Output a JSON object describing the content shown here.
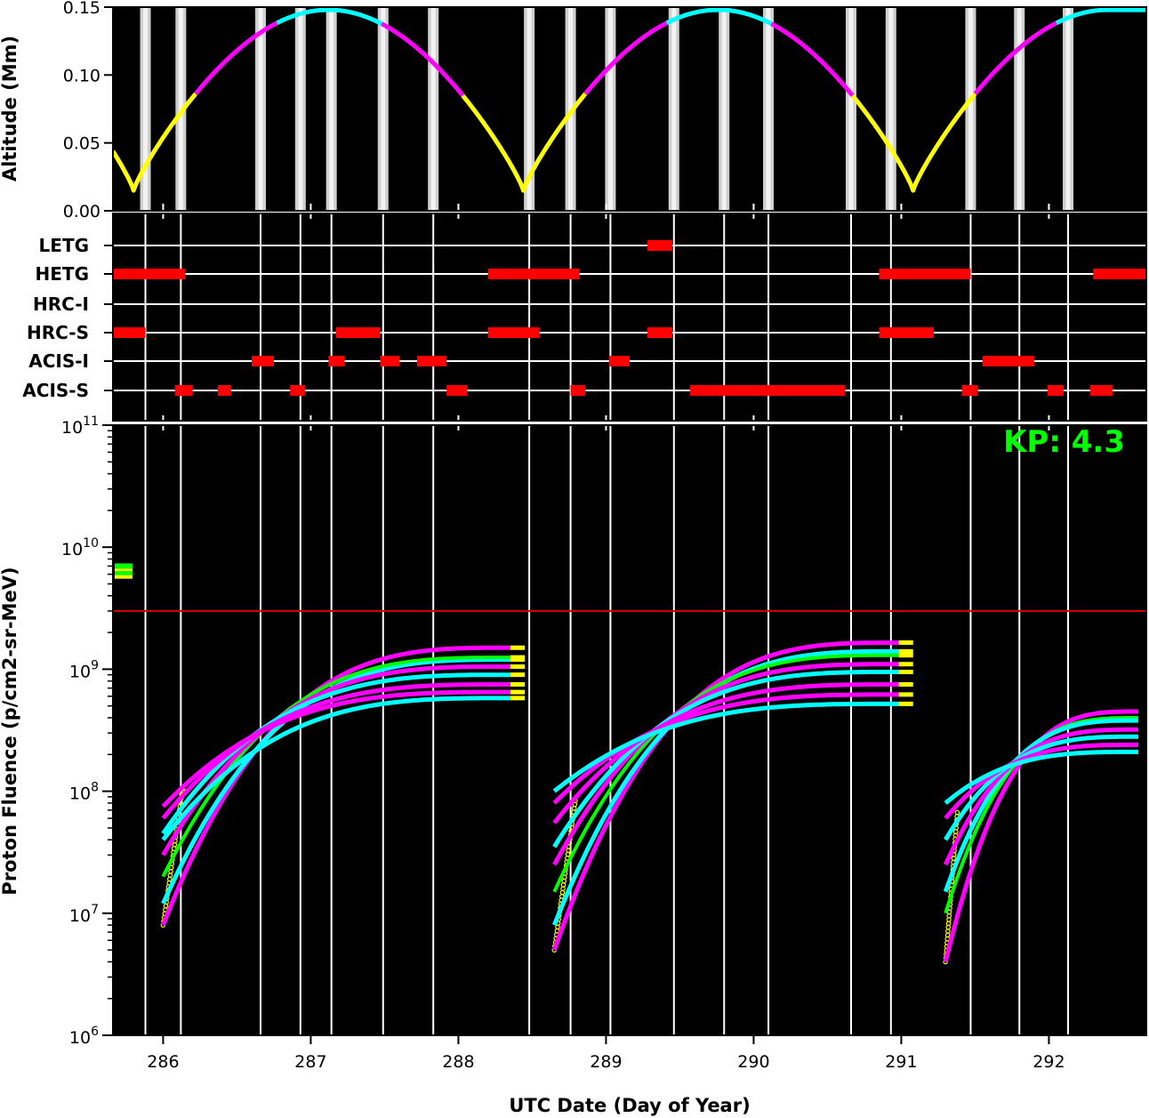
{
  "chart_data": [
    {
      "type": "line",
      "panel": "altitude",
      "ylabel": "Altitude (Mm)",
      "xlim": [
        285.66,
        292.66
      ],
      "ylim": [
        0.0,
        0.15
      ],
      "yticks": [
        "0.00",
        "0.05",
        "0.10",
        "0.15"
      ],
      "ytick_values": [
        0.0,
        0.05,
        0.1,
        0.15
      ],
      "perigee_days": [
        285.8,
        288.44,
        291.08
      ],
      "apogee_altitude": 0.148,
      "perigee_altitude": 0.015,
      "segment_colors": {
        "low": "#ffff00",
        "mid": "#ff00ff",
        "high": "#00ffff"
      },
      "radiation_zone_days": [
        285.88,
        286.12,
        286.66,
        286.93,
        287.14,
        287.49,
        287.83,
        288.48,
        288.76,
        289.03,
        289.46,
        289.8,
        290.1,
        290.66,
        290.93,
        291.47,
        291.8,
        292.13
      ]
    },
    {
      "type": "gantt",
      "panel": "instruments",
      "instruments": [
        "LETG",
        "HETG",
        "HRC-I",
        "HRC-S",
        "ACIS-I",
        "ACIS-S"
      ],
      "bar_color": "#ff0000",
      "intervals": {
        "LETG": [
          [
            289.28,
            289.45
          ]
        ],
        "HETG": [
          [
            285.66,
            286.15
          ],
          [
            288.2,
            288.82
          ],
          [
            290.85,
            291.47
          ],
          [
            292.3,
            292.66
          ]
        ],
        "HRC-I": [],
        "HRC-S": [
          [
            285.66,
            285.88
          ],
          [
            287.17,
            287.47
          ],
          [
            288.2,
            288.55
          ],
          [
            289.28,
            289.45
          ],
          [
            290.85,
            291.22
          ]
        ],
        "ACIS-I": [
          [
            286.6,
            286.75
          ],
          [
            287.12,
            287.23
          ],
          [
            287.47,
            287.6
          ],
          [
            287.72,
            287.92
          ],
          [
            289.02,
            289.16
          ],
          [
            291.55,
            291.9
          ]
        ],
        "ACIS-S": [
          [
            286.08,
            286.2
          ],
          [
            286.37,
            286.46
          ],
          [
            286.86,
            286.96
          ],
          [
            287.92,
            288.06
          ],
          [
            288.76,
            288.86
          ],
          [
            289.57,
            290.62
          ],
          [
            291.41,
            291.52
          ],
          [
            291.99,
            292.1
          ],
          [
            292.28,
            292.43
          ]
        ]
      }
    },
    {
      "type": "scatter",
      "panel": "fluence",
      "title": "KP: 4.3",
      "xlabel": "UTC Date (Day of Year)",
      "ylabel": "Proton Fluence (p/cm2-sr-MeV)",
      "yscale": "log",
      "xlim": [
        285.66,
        292.66
      ],
      "ylim": [
        1000000,
        100000000000
      ],
      "xticks": [
        "286",
        "287",
        "288",
        "289",
        "290",
        "291",
        "292"
      ],
      "xtick_values": [
        286,
        287,
        288,
        289,
        290,
        291,
        292
      ],
      "yticks": [
        {
          "base": "10",
          "exp": "6",
          "value": 1000000
        },
        {
          "base": "10",
          "exp": "7",
          "value": 10000000
        },
        {
          "base": "10",
          "exp": "8",
          "value": 100000000
        },
        {
          "base": "10",
          "exp": "9",
          "value": 1000000000
        },
        {
          "base": "10",
          "exp": "10",
          "value": 10000000000
        },
        {
          "base": "10",
          "exp": "11",
          "value": 100000000000
        }
      ],
      "threshold": {
        "value": 3000000000,
        "color": "#cc0000"
      },
      "initial_points": {
        "x_range": [
          285.66,
          285.78
        ],
        "values": [
          5800000000,
          6200000000,
          6700000000,
          7000000000
        ]
      },
      "passes": [
        {
          "start": 286.0,
          "end": 288.45,
          "series": [
            {
              "color": "#ff00ff",
              "start_value": 8000000,
              "end_value": 1500000000
            },
            {
              "color": "#00ffff",
              "start_value": 12000000,
              "end_value": 1200000000
            },
            {
              "color": "#00ff00",
              "start_value": 20000000,
              "end_value": 1250000000
            },
            {
              "color": "#ff00ff",
              "start_value": 30000000,
              "end_value": 1050000000
            },
            {
              "color": "#00ffff",
              "start_value": 45000000,
              "end_value": 900000000
            },
            {
              "color": "#ff00ff",
              "start_value": 60000000,
              "end_value": 750000000
            },
            {
              "color": "#ff00ff",
              "start_value": 75000000,
              "end_value": 650000000
            },
            {
              "color": "#00ffff",
              "start_value": 40000000,
              "end_value": 580000000
            }
          ]
        },
        {
          "start": 288.65,
          "end": 291.08,
          "series": [
            {
              "color": "#ff00ff",
              "start_value": 5000000,
              "end_value": 1650000000
            },
            {
              "color": "#00ffff",
              "start_value": 8000000,
              "end_value": 1400000000
            },
            {
              "color": "#00ff00",
              "start_value": 15000000,
              "end_value": 1300000000
            },
            {
              "color": "#ff00ff",
              "start_value": 25000000,
              "end_value": 1100000000
            },
            {
              "color": "#00ffff",
              "start_value": 35000000,
              "end_value": 950000000
            },
            {
              "color": "#ff00ff",
              "start_value": 55000000,
              "end_value": 750000000
            },
            {
              "color": "#ff00ff",
              "start_value": 80000000,
              "end_value": 620000000
            },
            {
              "color": "#00ffff",
              "start_value": 100000000,
              "end_value": 520000000
            }
          ]
        },
        {
          "start": 291.3,
          "end": 292.66,
          "series": [
            {
              "color": "#ff00ff",
              "start_value": 4000000,
              "end_value": 450000000
            },
            {
              "color": "#00ff00",
              "start_value": 10000000,
              "end_value": 400000000
            },
            {
              "color": "#00ffff",
              "start_value": 15000000,
              "end_value": 380000000
            },
            {
              "color": "#ff00ff",
              "start_value": 25000000,
              "end_value": 320000000
            },
            {
              "color": "#00ffff",
              "start_value": 40000000,
              "end_value": 280000000
            },
            {
              "color": "#ff00ff",
              "start_value": 60000000,
              "end_value": 240000000
            },
            {
              "color": "#00ffff",
              "start_value": 80000000,
              "end_value": 210000000
            }
          ]
        }
      ]
    }
  ]
}
